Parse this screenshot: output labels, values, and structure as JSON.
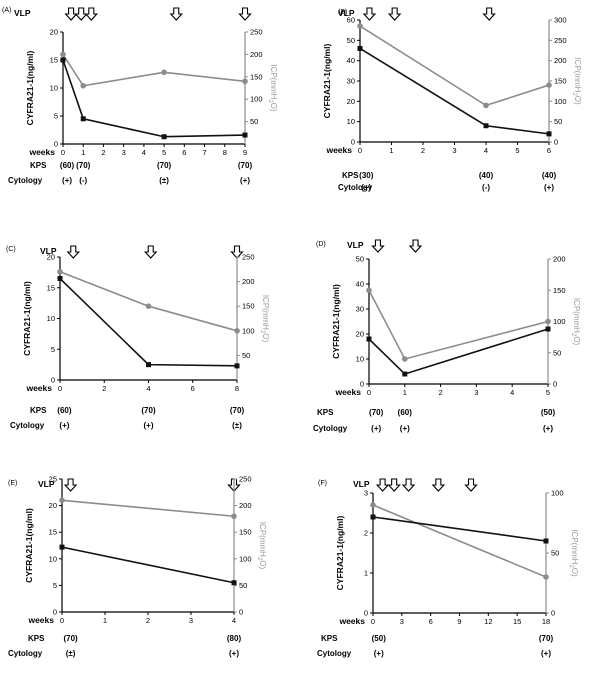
{
  "figure": {
    "common": {
      "vlp_label": "VLP",
      "x_label": "weeks",
      "kps_label": "KPS",
      "cytology_label": "Cytology",
      "left_axis_label": "CYFRA21-1(ng/ml)",
      "right_axis_label": "ICP(mmH2O)"
    }
  },
  "chart_data": [
    {
      "panel": "(A)",
      "type": "line",
      "x_ticks": [
        0,
        1,
        2,
        3,
        4,
        5,
        6,
        7,
        8,
        9
      ],
      "xlim": [
        0,
        9
      ],
      "left_ticks": [
        0,
        5,
        10,
        15,
        20
      ],
      "left_lim": [
        0,
        20
      ],
      "right_ticks": [
        50,
        100,
        150,
        200,
        250
      ],
      "right_lim": [
        0,
        250
      ],
      "vlp_weeks": [
        0.4,
        0.9,
        1.4,
        5.6,
        9.0
      ],
      "series": [
        {
          "axis": "left",
          "color": "#111111",
          "marker": "square",
          "x": [
            0,
            1,
            5,
            9
          ],
          "y": [
            15,
            4.5,
            1.3,
            1.6
          ]
        },
        {
          "axis": "right",
          "color": "#8c8c8c",
          "marker": "circle",
          "x": [
            0,
            1,
            5,
            9
          ],
          "y": [
            200,
            130,
            160,
            140
          ]
        }
      ],
      "annotations": [
        {
          "x": 0.2,
          "kps": "(60)",
          "cytology": "(+)"
        },
        {
          "x": 1,
          "kps": "(70)",
          "cytology": "(-)"
        },
        {
          "x": 5,
          "kps": "(70)",
          "cytology": "(±)"
        },
        {
          "x": 9,
          "kps": "(70)",
          "cytology": "(+)"
        }
      ]
    },
    {
      "panel": "(B)",
      "type": "line",
      "x_ticks": [
        0,
        1,
        2,
        3,
        4,
        5,
        6
      ],
      "xlim": [
        0,
        6
      ],
      "left_ticks": [
        0,
        10,
        20,
        30,
        40,
        50,
        60
      ],
      "left_lim": [
        0,
        60
      ],
      "right_ticks": [
        0,
        50,
        100,
        150,
        200,
        250,
        300
      ],
      "right_lim": [
        0,
        300
      ],
      "vlp_weeks": [
        0.3,
        1.1,
        4.1
      ],
      "series": [
        {
          "axis": "left",
          "color": "#111111",
          "marker": "square",
          "x": [
            0,
            4,
            6
          ],
          "y": [
            46,
            8,
            4
          ]
        },
        {
          "axis": "right",
          "color": "#8c8c8c",
          "marker": "circle",
          "x": [
            0,
            4,
            6
          ],
          "y": [
            285,
            90,
            140
          ]
        }
      ],
      "annotations": [
        {
          "x": 0.2,
          "kps": "(30)",
          "cytology": "(+)"
        },
        {
          "x": 4,
          "kps": "(40)",
          "cytology": "(-)"
        },
        {
          "x": 6,
          "kps": "(40)",
          "cytology": "(+)"
        }
      ]
    },
    {
      "panel": "(C)",
      "type": "line",
      "x_ticks": [
        0,
        2,
        4,
        6,
        8
      ],
      "xlim": [
        0,
        8
      ],
      "left_ticks": [
        0,
        5,
        10,
        15,
        20
      ],
      "left_lim": [
        0,
        20
      ],
      "right_ticks": [
        50,
        100,
        150,
        200,
        250
      ],
      "right_lim": [
        0,
        250
      ],
      "vlp_weeks": [
        0.6,
        4.1,
        8.0
      ],
      "series": [
        {
          "axis": "left",
          "color": "#111111",
          "marker": "square",
          "x": [
            0,
            4,
            8
          ],
          "y": [
            16.5,
            2.5,
            2.3
          ]
        },
        {
          "axis": "right",
          "color": "#8c8c8c",
          "marker": "circle",
          "x": [
            0,
            4,
            8
          ],
          "y": [
            220,
            150,
            100
          ]
        }
      ],
      "annotations": [
        {
          "x": 0.2,
          "kps": "(60)",
          "cytology": "(+)"
        },
        {
          "x": 4,
          "kps": "(70)",
          "cytology": "(+)"
        },
        {
          "x": 8,
          "kps": "(70)",
          "cytology": "(±)"
        }
      ]
    },
    {
      "panel": "(D)",
      "type": "line",
      "x_ticks": [
        0,
        1,
        2,
        3,
        4,
        5
      ],
      "xlim": [
        0,
        5
      ],
      "left_ticks": [
        0,
        10,
        20,
        30,
        40,
        50
      ],
      "left_lim": [
        0,
        50
      ],
      "right_ticks": [
        0,
        50,
        100,
        150,
        200
      ],
      "right_lim": [
        0,
        200
      ],
      "vlp_weeks": [
        0.25,
        1.3
      ],
      "series": [
        {
          "axis": "left",
          "color": "#111111",
          "marker": "square",
          "x": [
            0,
            1,
            5
          ],
          "y": [
            18,
            4,
            22
          ]
        },
        {
          "axis": "right",
          "color": "#8c8c8c",
          "marker": "circle",
          "x": [
            0,
            1,
            5
          ],
          "y": [
            150,
            40,
            100
          ]
        }
      ],
      "annotations": [
        {
          "x": 0.2,
          "kps": "(70)",
          "cytology": "(+)"
        },
        {
          "x": 1,
          "kps": "(60)",
          "cytology": "(+)"
        },
        {
          "x": 5,
          "kps": "(50)",
          "cytology": "(+)"
        }
      ]
    },
    {
      "panel": "(E)",
      "type": "line",
      "x_ticks": [
        0,
        1,
        2,
        3,
        4
      ],
      "xlim": [
        0,
        4
      ],
      "left_ticks": [
        0,
        5,
        10,
        15,
        20,
        25
      ],
      "left_lim": [
        0,
        25
      ],
      "right_ticks": [
        0,
        50,
        100,
        150,
        200,
        250
      ],
      "right_lim": [
        0,
        250
      ],
      "vlp_weeks": [
        0.2,
        4.0
      ],
      "series": [
        {
          "axis": "left",
          "color": "#111111",
          "marker": "square",
          "x": [
            0,
            4
          ],
          "y": [
            12.2,
            5.5
          ]
        },
        {
          "axis": "right",
          "color": "#8c8c8c",
          "marker": "circle",
          "x": [
            0,
            4
          ],
          "y": [
            210,
            180
          ]
        }
      ],
      "annotations": [
        {
          "x": 0.2,
          "kps": "(70)",
          "cytology": "(±)"
        },
        {
          "x": 4,
          "kps": "(80)",
          "cytology": "(+)"
        }
      ]
    },
    {
      "panel": "(F)",
      "type": "line",
      "x_ticks": [
        0,
        3,
        6,
        9,
        12,
        15,
        18
      ],
      "xlim": [
        0,
        18
      ],
      "left_ticks": [
        0,
        1,
        2,
        3
      ],
      "left_lim": [
        0,
        3
      ],
      "right_ticks": [
        0,
        50,
        100
      ],
      "right_lim": [
        0,
        100
      ],
      "vlp_weeks": [
        1.0,
        2.2,
        3.7,
        6.8,
        10.2
      ],
      "series": [
        {
          "axis": "left",
          "color": "#111111",
          "marker": "square",
          "x": [
            0,
            18
          ],
          "y": [
            2.4,
            1.8
          ]
        },
        {
          "axis": "right",
          "color": "#8c8c8c",
          "marker": "circle",
          "x": [
            0,
            18
          ],
          "y": [
            90,
            30
          ]
        }
      ],
      "annotations": [
        {
          "x": 0.6,
          "kps": "(50)",
          "cytology": "(+)"
        },
        {
          "x": 18,
          "kps": "(70)",
          "cytology": "(+)"
        }
      ]
    }
  ]
}
